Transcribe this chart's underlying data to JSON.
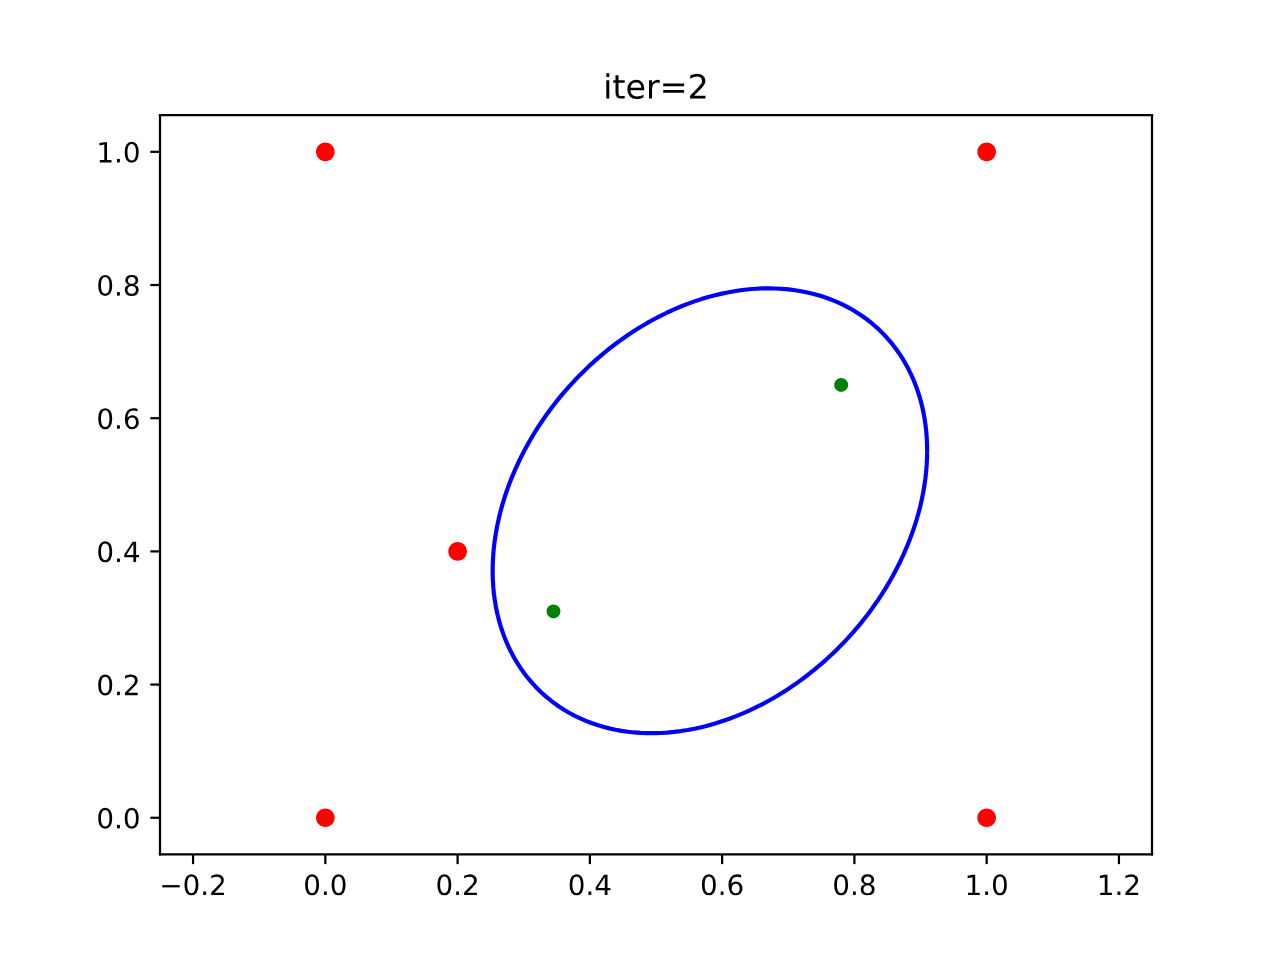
{
  "chart_data": {
    "type": "scatter",
    "title": "iter=2",
    "xlim": [
      -0.25,
      1.25
    ],
    "ylim": [
      -0.055,
      1.055
    ],
    "xticks": [
      {
        "value": -0.2,
        "label": "−0.2"
      },
      {
        "value": 0.0,
        "label": "0.0"
      },
      {
        "value": 0.2,
        "label": "0.2"
      },
      {
        "value": 0.4,
        "label": "0.4"
      },
      {
        "value": 0.6,
        "label": "0.6"
      },
      {
        "value": 0.8,
        "label": "0.8"
      },
      {
        "value": 1.0,
        "label": "1.0"
      },
      {
        "value": 1.2,
        "label": "1.2"
      }
    ],
    "yticks": [
      {
        "value": 0.0,
        "label": "0.0"
      },
      {
        "value": 0.2,
        "label": "0.2"
      },
      {
        "value": 0.4,
        "label": "0.4"
      },
      {
        "value": 0.6,
        "label": "0.6"
      },
      {
        "value": 0.8,
        "label": "0.8"
      },
      {
        "value": 1.0,
        "label": "1.0"
      }
    ],
    "grid": false,
    "legend": false,
    "series": [
      {
        "type": "scatter",
        "color": "#ff0000",
        "marker": "circle",
        "x": [
          0,
          0,
          1,
          1,
          0.2
        ],
        "values": [
          0,
          1,
          1,
          0,
          0.4
        ]
      },
      {
        "type": "scatter",
        "color": "#008000",
        "marker": "circle",
        "x": [
          0.345,
          0.78
        ],
        "values": [
          0.31,
          0.65
        ]
      }
    ]
  }
}
